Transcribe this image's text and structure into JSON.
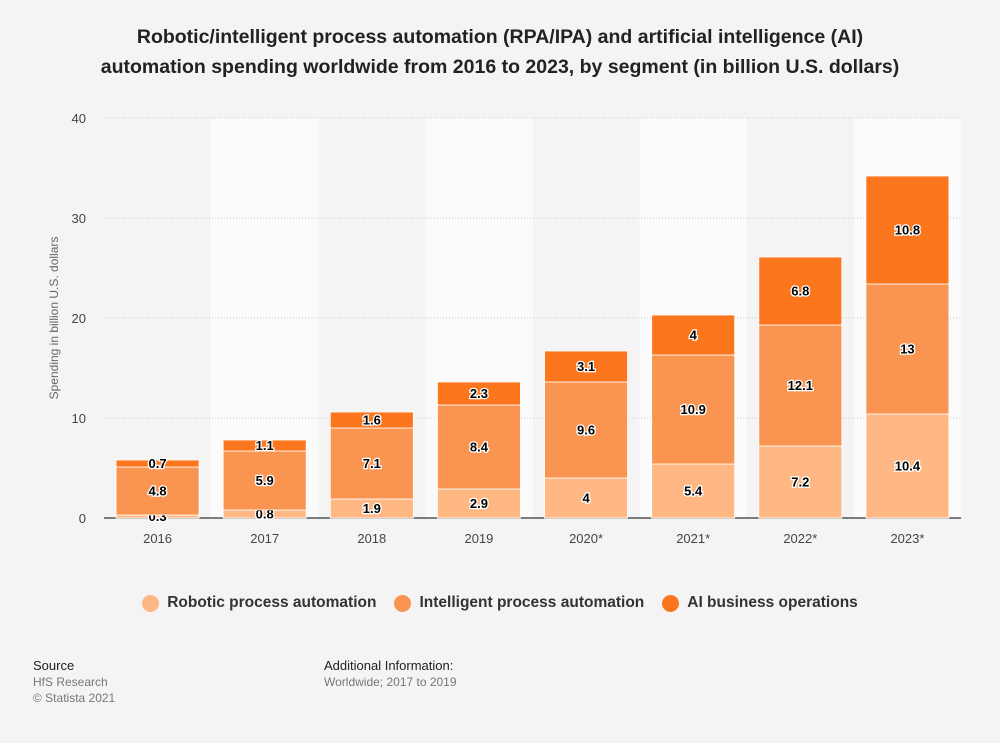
{
  "title": {
    "line1": "Robotic/intelligent process automation (RPA/IPA) and artificial intelligence (AI)",
    "line2": "automation spending worldwide from 2016 to 2023, by segment (in billion U.S. dollars)"
  },
  "chart_data": {
    "type": "bar",
    "stacked": true,
    "categories": [
      "2016",
      "2017",
      "2018",
      "2019",
      "2020*",
      "2021*",
      "2022*",
      "2023*"
    ],
    "series": [
      {
        "name": "Robotic process automation",
        "color": "#ffb883",
        "values": [
          0.3,
          0.8,
          1.9,
          2.9,
          4,
          5.4,
          7.2,
          10.4
        ]
      },
      {
        "name": "Intelligent process automation",
        "color": "#f99550",
        "values": [
          4.8,
          5.9,
          7.1,
          8.4,
          9.6,
          10.9,
          12.1,
          13
        ]
      },
      {
        "name": "AI business operations",
        "color": "#fc761e",
        "values": [
          0.7,
          1.1,
          1.6,
          2.3,
          3.1,
          4,
          6.8,
          10.8
        ]
      }
    ],
    "ylabel": "Spending in billion U.S. dollars",
    "xlabel": "",
    "ylim": [
      0,
      40
    ],
    "yticks": [
      0,
      10,
      20,
      30,
      40
    ],
    "grid": true,
    "legend_position": "bottom"
  },
  "footer": {
    "source_title": "Source",
    "source_name": "HfS Research",
    "copyright": "© Statista 2021",
    "info_title": "Additional Information:",
    "info_text": "Worldwide; 2017 to 2019"
  }
}
